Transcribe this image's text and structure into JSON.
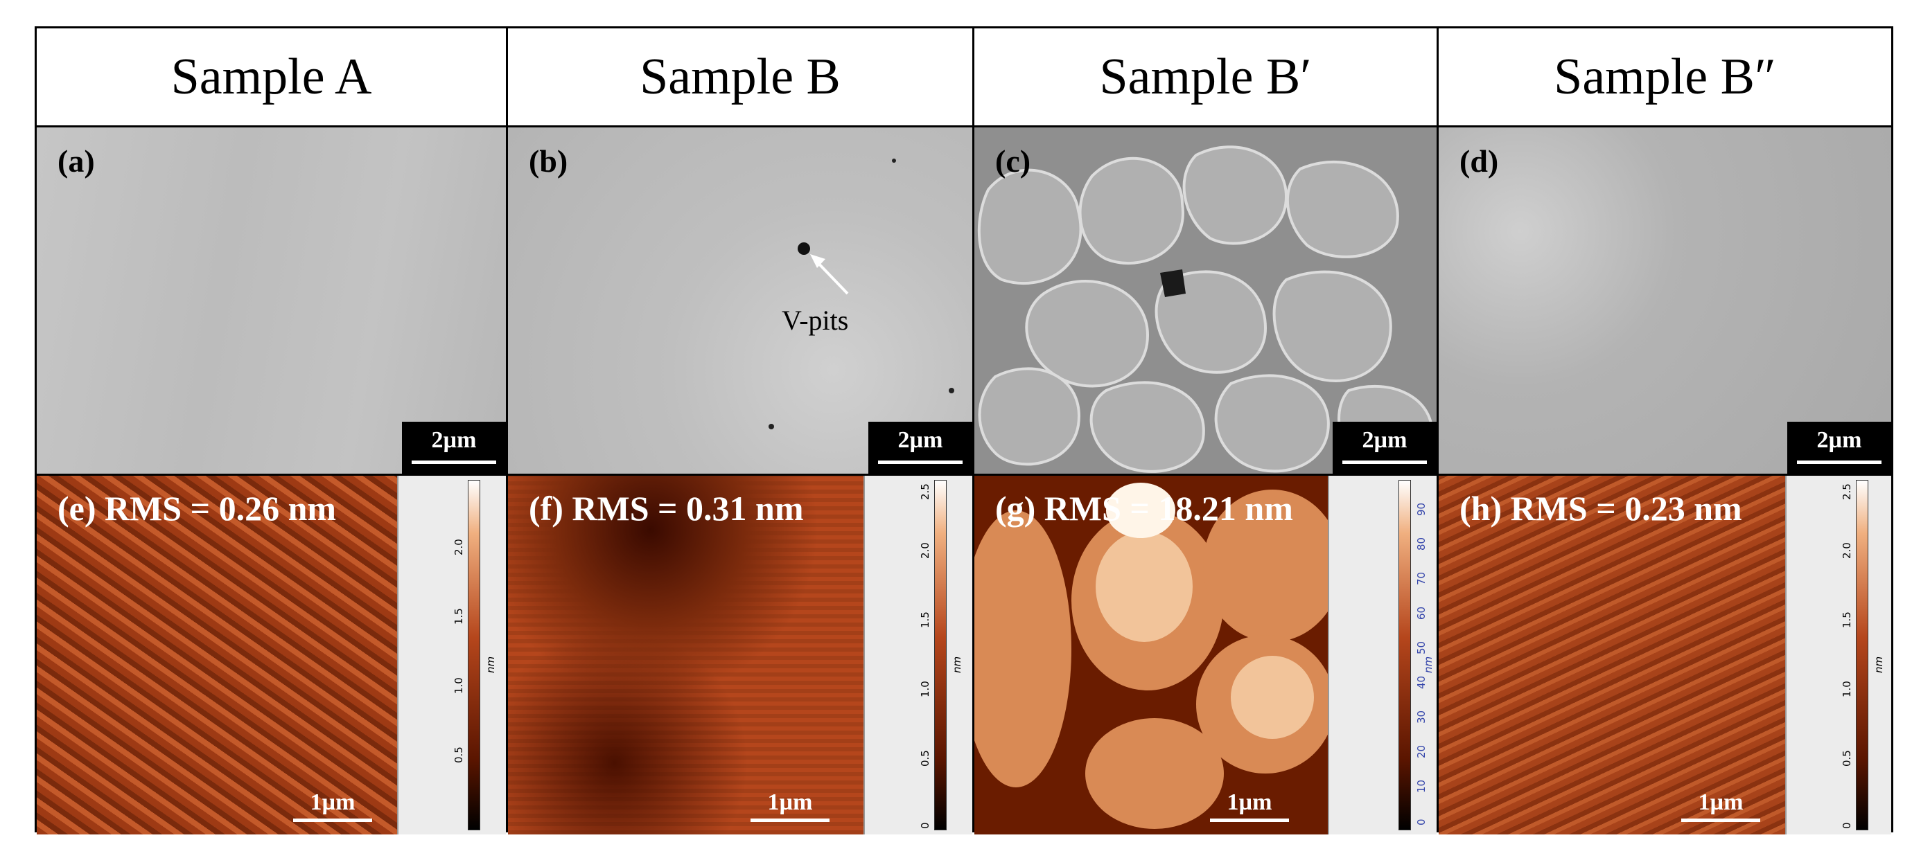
{
  "columns": [
    {
      "title": "Sample A",
      "sem_label": "(a)",
      "afm_label": "(e)",
      "rms_text": "(e) RMS = 0.26 nm",
      "sem_scale": "2µm",
      "afm_scale": "1µm"
    },
    {
      "title": "Sample B",
      "sem_label": "(b)",
      "afm_label": "(f)",
      "rms_text": "(f) RMS = 0.31 nm",
      "sem_scale": "2µm",
      "afm_scale": "1µm"
    },
    {
      "title": "Sample B′",
      "sem_label": "(c)",
      "afm_label": "(g)",
      "rms_text": "(g) RMS = 18.21 nm",
      "sem_scale": "2µm",
      "afm_scale": "1µm"
    },
    {
      "title": "Sample B″",
      "sem_label": "(d)",
      "afm_label": "(h)",
      "rms_text": "(h) RMS = 0.23 nm",
      "sem_scale": "2µm",
      "afm_scale": "1µm"
    }
  ],
  "annotation": "V-pits",
  "colorbars": [
    {
      "ticks": [
        "0.5",
        "1.0",
        "1.5",
        "2.0"
      ],
      "unit": "nm"
    },
    {
      "ticks": [
        "0",
        "0.5",
        "1.0",
        "1.5",
        "2.0",
        "2.5"
      ],
      "unit": "nm"
    },
    {
      "ticks": [
        "0",
        "10",
        "20",
        "30",
        "40",
        "50",
        "60",
        "70",
        "80",
        "90"
      ],
      "unit": "nm"
    },
    {
      "ticks": [
        "0",
        "0.5",
        "1.0",
        "1.5",
        "2.0",
        "2.5"
      ],
      "unit": "nm"
    }
  ],
  "colors": {
    "afm_dark": "#3a0a00",
    "afm_mid": "#b5461c",
    "afm_light": "#f6d2a8",
    "sem_gray": "#bdbdbd"
  }
}
